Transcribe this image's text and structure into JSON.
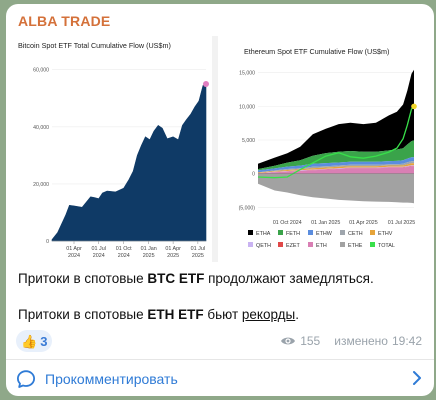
{
  "channel": {
    "name": "ALBA TRADE"
  },
  "chart_data": [
    {
      "type": "area",
      "title": "Bitcoin Spot ETF Total Cumulative Flow (US$m)",
      "x_tick_labels": [
        {
          "top": "01 Apr",
          "bottom": "2024"
        },
        {
          "top": "01 Jul",
          "bottom": "2024"
        },
        {
          "top": "01 Oct",
          "bottom": "2024"
        },
        {
          "top": "01 Jan",
          "bottom": "2025"
        },
        {
          "top": "01 Apr",
          "bottom": "2025"
        },
        {
          "top": "01 Jul",
          "bottom": "2025"
        }
      ],
      "y_ticks": [
        0,
        20000,
        40000,
        60000
      ],
      "y_tick_labels": [
        "0",
        "20,000",
        "40,000",
        "60,000"
      ],
      "ylim": [
        0,
        62000
      ],
      "x_range": [
        "2024-01-11",
        "2025-07-31"
      ],
      "series": [
        {
          "color": "#0f3a66",
          "x": [
            "2024-01-11",
            "2024-02-01",
            "2024-03-01",
            "2024-03-15",
            "2024-04-01",
            "2024-05-01",
            "2024-06-01",
            "2024-06-15",
            "2024-07-01",
            "2024-07-15",
            "2024-08-01",
            "2024-09-01",
            "2024-10-01",
            "2024-10-20",
            "2024-11-05",
            "2024-11-20",
            "2024-12-05",
            "2024-12-20",
            "2025-01-05",
            "2025-01-20",
            "2025-02-05",
            "2025-02-20",
            "2025-03-10",
            "2025-04-01",
            "2025-04-20",
            "2025-05-05",
            "2025-05-20",
            "2025-06-05",
            "2025-06-20",
            "2025-07-05",
            "2025-07-20",
            "2025-07-31"
          ],
          "y": [
            500,
            3000,
            9000,
            12500,
            12300,
            11800,
            15500,
            15200,
            14800,
            16800,
            17500,
            17200,
            18500,
            21500,
            24500,
            30000,
            33500,
            36500,
            35500,
            38500,
            40500,
            39500,
            35800,
            36500,
            35500,
            40500,
            42500,
            44500,
            47000,
            49000,
            54500,
            55000
          ]
        }
      ],
      "end_marker_color": "#e07fc0"
    },
    {
      "type": "area",
      "title": "Ethereum Spot ETF Cumulative Flow (US$m)",
      "x_tick_labels": [
        "01 Oct 2024",
        "01 Jan 2025",
        "01 Apr 2025",
        "01 Jul 2025"
      ],
      "y_ticks": [
        -5000,
        0,
        5000,
        10000,
        15000
      ],
      "y_tick_labels": [
        "(5,000)",
        "0",
        "5,000",
        "10,000",
        "15,000"
      ],
      "ylim": [
        -6000,
        16000
      ],
      "x_range": [
        "2024-07-23",
        "2025-07-31"
      ],
      "x": [
        "2024-07-23",
        "2024-09-01",
        "2024-10-01",
        "2024-11-01",
        "2024-12-01",
        "2025-01-01",
        "2025-02-01",
        "2025-03-01",
        "2025-04-01",
        "2025-05-01",
        "2025-06-01",
        "2025-06-20",
        "2025-07-05",
        "2025-07-15",
        "2025-07-25",
        "2025-07-31"
      ],
      "series": [
        {
          "name": "ETHA",
          "color": "#000000",
          "y": [
            800,
            1200,
            1400,
            2000,
            3200,
            3600,
            4100,
            4200,
            4100,
            4300,
            5200,
            5600,
            6500,
            8000,
            10000,
            10500
          ]
        },
        {
          "name": "FETH",
          "color": "#3aa34a",
          "y": [
            200,
            400,
            600,
            800,
            1200,
            1500,
            1600,
            1600,
            1500,
            1500,
            1600,
            1700,
            1800,
            2100,
            2400,
            2500
          ]
        },
        {
          "name": "ETHW",
          "color": "#5b8dde",
          "y": [
            300,
            300,
            350,
            400,
            450,
            450,
            450,
            450,
            450,
            450,
            450,
            480,
            500,
            550,
            600,
            600
          ]
        },
        {
          "name": "CETH",
          "color": "#9fa6ad",
          "y": [
            0,
            100,
            150,
            150,
            200,
            200,
            200,
            200,
            200,
            200,
            200,
            200,
            250,
            300,
            300,
            300
          ]
        },
        {
          "name": "ETHV",
          "color": "#e6a43a",
          "y": [
            100,
            100,
            150,
            150,
            200,
            200,
            200,
            200,
            200,
            200,
            200,
            200,
            200,
            250,
            300,
            300
          ]
        },
        {
          "name": "QETH",
          "color": "#c9b3f2",
          "y": [
            50,
            50,
            60,
            60,
            70,
            70,
            70,
            70,
            70,
            70,
            70,
            70,
            80,
            80,
            90,
            90
          ]
        },
        {
          "name": "EZET",
          "color": "#e04848",
          "y": [
            30,
            30,
            30,
            40,
            40,
            40,
            40,
            40,
            40,
            40,
            40,
            40,
            50,
            50,
            50,
            50
          ]
        },
        {
          "name": "ETH",
          "color": "#d97fb4",
          "y": [
            0,
            200,
            300,
            400,
            500,
            600,
            700,
            800,
            800,
            800,
            900,
            900,
            900,
            1000,
            1100,
            1100
          ]
        },
        {
          "name": "ETHE",
          "color": "#a2a2a2",
          "y": [
            -1500,
            -2500,
            -2800,
            -3200,
            -3500,
            -3700,
            -3900,
            -4000,
            -4100,
            -4150,
            -4200,
            -4250,
            -4300,
            -4300,
            -4350,
            -4400
          ]
        },
        {
          "name": "TOTAL",
          "color": "#38e04a",
          "y": [
            -500,
            -600,
            -500,
            600,
            1600,
            2600,
            3100,
            2500,
            2300,
            2600,
            3200,
            3800,
            5200,
            7200,
            9600,
            10000
          ]
        }
      ],
      "end_marker_color": "#f1d62a"
    }
  ],
  "message": {
    "line1": {
      "pre": "Притоки в спотовые ",
      "bold": "BTC ETF",
      "post": " продолжают замедляться."
    },
    "line2": {
      "pre": "Притоки в спотовые ",
      "bold": "ETH ETF",
      "mid": " бьют ",
      "link": "рекорды",
      "post": "."
    }
  },
  "reaction": {
    "emoji": "👍",
    "count": "3"
  },
  "meta": {
    "views": "155",
    "edited_label": "изменено",
    "time": "19:42"
  },
  "comment": {
    "label": "Прокомментировать"
  },
  "colors": {
    "channel_name": "#d4713a",
    "link_blue": "#2f7bd6",
    "btc_area": "#0f3a66",
    "background": "#8fa889"
  }
}
